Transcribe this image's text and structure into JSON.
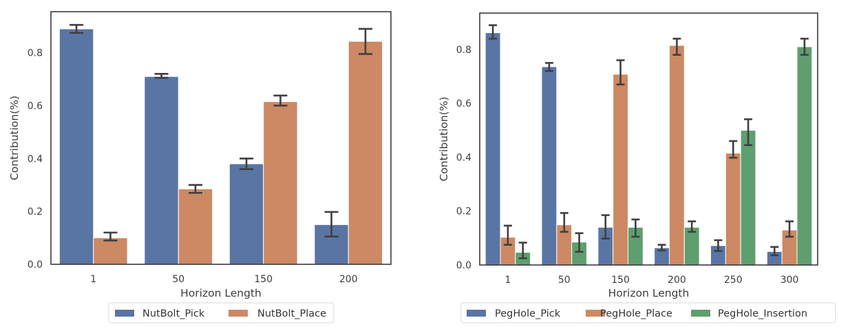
{
  "chart_data": [
    {
      "type": "bar",
      "title": "",
      "xlabel": "Horizon Length",
      "ylabel": "Contribution(%)",
      "ylim": [
        0,
        0.955
      ],
      "yticks": [
        "0.0",
        "0.2",
        "0.4",
        "0.6",
        "0.8"
      ],
      "ytick_values": [
        0.0,
        0.2,
        0.4,
        0.6,
        0.8
      ],
      "grid": false,
      "legend_position": "bottom-center",
      "categories": [
        "1",
        "50",
        "150",
        "200"
      ],
      "series": [
        {
          "name": "NutBolt_Pick",
          "color": "#5975a4",
          "values": [
            0.89,
            0.71,
            0.38,
            0.15
          ],
          "err_low": [
            0.875,
            0.705,
            0.36,
            0.105
          ],
          "err_high": [
            0.905,
            0.72,
            0.4,
            0.198
          ]
        },
        {
          "name": "NutBolt_Place",
          "color": "#cc8963",
          "values": [
            0.1,
            0.285,
            0.615,
            0.843
          ],
          "err_low": [
            0.09,
            0.27,
            0.6,
            0.795
          ],
          "err_high": [
            0.12,
            0.3,
            0.638,
            0.89
          ]
        }
      ]
    },
    {
      "type": "bar",
      "title": "",
      "xlabel": "Horizon Length",
      "ylabel": "Contribution(%)",
      "ylim": [
        0,
        0.935
      ],
      "yticks": [
        "0.0",
        "0.2",
        "0.4",
        "0.6",
        "0.8"
      ],
      "ytick_values": [
        0.0,
        0.2,
        0.4,
        0.6,
        0.8
      ],
      "grid": false,
      "legend_position": "bottom-center",
      "categories": [
        "1",
        "50",
        "150",
        "200",
        "250",
        "300"
      ],
      "series": [
        {
          "name": "PegHole_Pick",
          "color": "#5975a4",
          "values": [
            0.862,
            0.736,
            0.14,
            0.064,
            0.072,
            0.05
          ],
          "err_low": [
            0.84,
            0.72,
            0.098,
            0.054,
            0.052,
            0.036
          ],
          "err_high": [
            0.89,
            0.75,
            0.185,
            0.075,
            0.092,
            0.067
          ]
        },
        {
          "name": "PegHole_Place",
          "color": "#cc8963",
          "values": [
            0.103,
            0.149,
            0.708,
            0.815,
            0.415,
            0.13
          ],
          "err_low": [
            0.075,
            0.123,
            0.67,
            0.78,
            0.398,
            0.105
          ],
          "err_high": [
            0.146,
            0.193,
            0.76,
            0.84,
            0.46,
            0.162
          ]
        },
        {
          "name": "PegHole_Insertion",
          "color": "#5f9e6e",
          "values": [
            0.047,
            0.085,
            0.14,
            0.14,
            0.5,
            0.81
          ],
          "err_low": [
            0.025,
            0.049,
            0.105,
            0.123,
            0.445,
            0.78
          ],
          "err_high": [
            0.083,
            0.118,
            0.169,
            0.162,
            0.541,
            0.84
          ]
        }
      ]
    }
  ]
}
